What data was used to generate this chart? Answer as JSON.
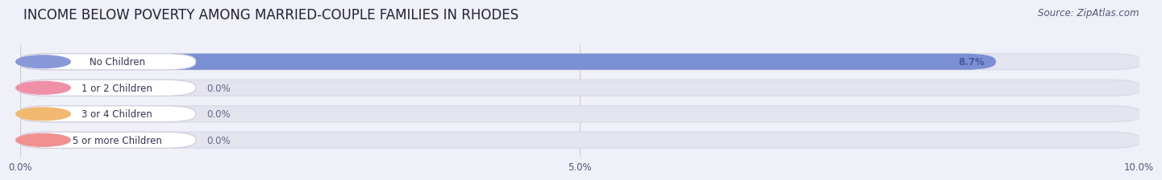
{
  "title": "INCOME BELOW POVERTY AMONG MARRIED-COUPLE FAMILIES IN RHODES",
  "source": "Source: ZipAtlas.com",
  "categories": [
    "No Children",
    "1 or 2 Children",
    "3 or 4 Children",
    "5 or more Children"
  ],
  "values": [
    8.7,
    0.0,
    0.0,
    0.0
  ],
  "bar_colors": [
    "#7b8fd4",
    "#f09bb0",
    "#f0c080",
    "#f09898"
  ],
  "label_circle_colors": [
    "#8898d8",
    "#f090a8",
    "#f0b870",
    "#f09090"
  ],
  "xlim": [
    0,
    10.0
  ],
  "xticks": [
    0.0,
    5.0,
    10.0
  ],
  "xtick_labels": [
    "0.0%",
    "5.0%",
    "10.0%"
  ],
  "background_color": "#f0f0f8",
  "bar_bg_color": "#e4e4ee",
  "bar_bg_outline": "#d8d8e8",
  "label_bg_color": "#ffffff",
  "title_fontsize": 12,
  "source_fontsize": 8.5,
  "bar_label_fontsize": 8.5,
  "value_label_fontsize": 8.5,
  "bar_height": 0.58,
  "bar_value_color": "#4a5a9a",
  "zero_value_color": "#666688"
}
